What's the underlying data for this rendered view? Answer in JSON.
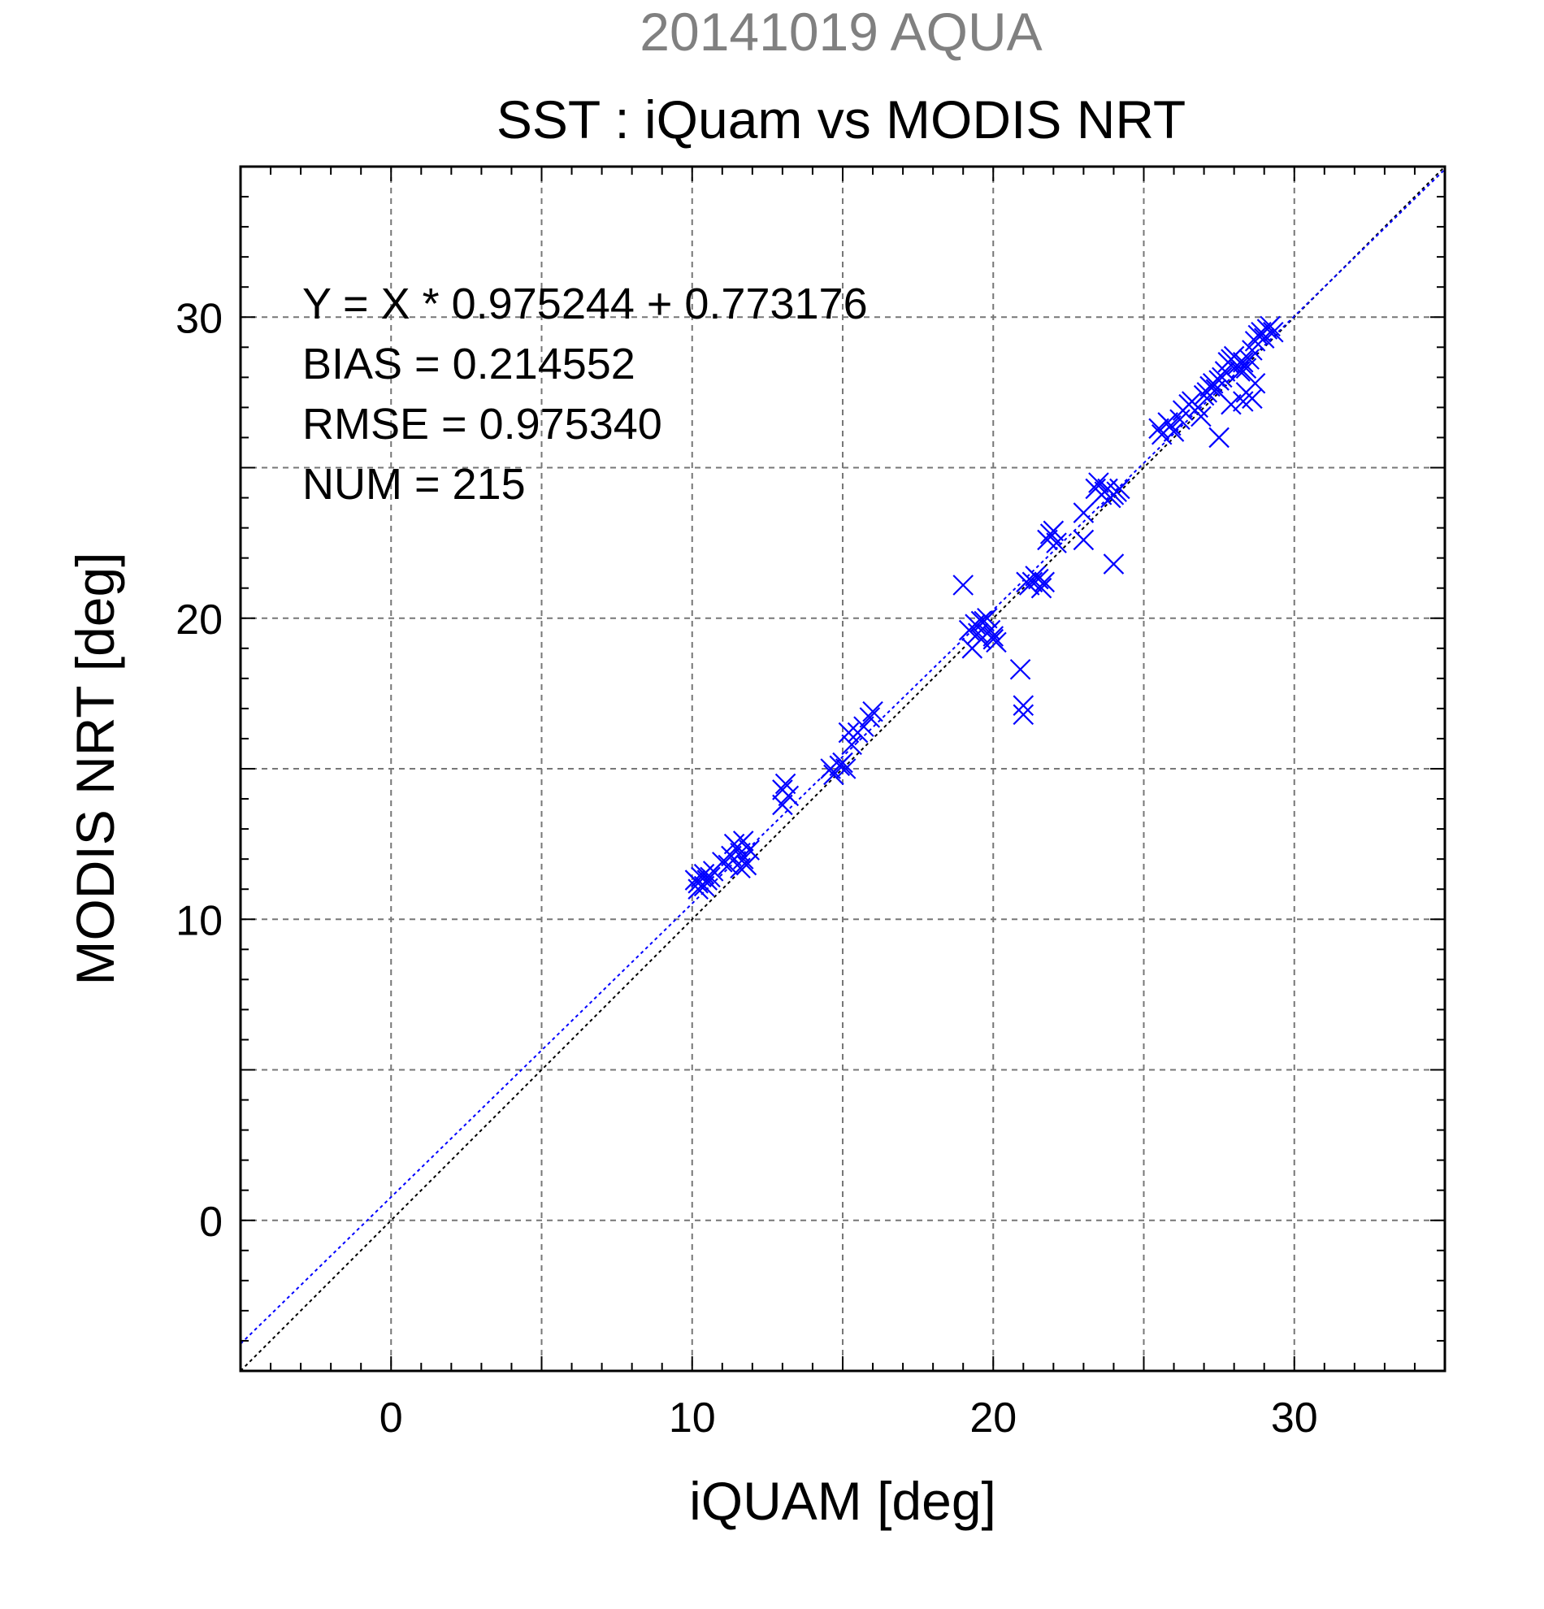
{
  "chart_data": {
    "type": "scatter",
    "supertitle": "20141019 AQUA",
    "title": "SST : iQuam vs MODIS NRT",
    "xlabel": "iQUAM [deg]",
    "ylabel": "MODIS NRT [deg]",
    "xlim": [
      -5,
      35
    ],
    "ylim": [
      -5,
      35
    ],
    "xticks": [
      0,
      10,
      20,
      30
    ],
    "yticks": [
      0,
      10,
      20,
      30
    ],
    "xtick_labels": [
      "0",
      "10",
      "20",
      "30"
    ],
    "ytick_labels": [
      "0",
      "10",
      "20",
      "30"
    ],
    "grid_step": 5,
    "minor_step": 1,
    "grid": true,
    "annotations": [
      "Y = X * 0.975244 + 0.773176",
      "BIAS = 0.214552",
      "RMSE = 0.975340",
      "NUM = 215"
    ],
    "regression": {
      "slope": 0.975244,
      "intercept": 0.773176,
      "color": "#0000ff"
    },
    "identity_line": {
      "color": "#000000"
    },
    "marker": "x",
    "point_color": "#0000ff",
    "series": [
      {
        "x": [
          10.1,
          10.2,
          10.3,
          10.4,
          10.5,
          10.6,
          10.2,
          10.4,
          10.7,
          11.0,
          11.2,
          11.3,
          11.5,
          11.6,
          11.7,
          11.8,
          11.4,
          11.9,
          11.7,
          11.6,
          13.0,
          13.1,
          13.0,
          13.2,
          14.6,
          14.7,
          14.9,
          15.0,
          15.1,
          15.2,
          15.3,
          15.5,
          15.7,
          15.9,
          16.0,
          19.0,
          19.2,
          19.4,
          19.5,
          19.6,
          19.7,
          19.8,
          19.9,
          20.0,
          20.1,
          19.3,
          19.6,
          19.8,
          20.0,
          20.9,
          21.0,
          21.0,
          21.1,
          21.2,
          21.3,
          21.4,
          21.5,
          21.6,
          21.7,
          21.8,
          21.9,
          22.0,
          22.1,
          23.0,
          23.0,
          23.4,
          23.5,
          23.6,
          23.7,
          23.8,
          23.9,
          24.0,
          24.1,
          24.2,
          24.0,
          25.5,
          25.6,
          25.8,
          25.9,
          26.0,
          26.2,
          26.3,
          26.5,
          26.6,
          26.8,
          26.9,
          27.0,
          27.1,
          27.2,
          27.3,
          27.4,
          27.5,
          27.6,
          27.7,
          27.8,
          27.9,
          28.0,
          28.1,
          28.2,
          28.3,
          28.4,
          28.5,
          28.6,
          28.7,
          28.8,
          28.9,
          29.0,
          29.1,
          29.2,
          29.3,
          27.5,
          27.9,
          28.3,
          28.4,
          28.6,
          28.7
        ],
        "y": [
          11.3,
          11.2,
          11.4,
          11.1,
          11.3,
          11.4,
          11.0,
          11.5,
          11.6,
          11.9,
          11.8,
          12.1,
          12.4,
          12.2,
          12.0,
          11.8,
          12.5,
          12.3,
          12.6,
          11.7,
          14.3,
          14.5,
          13.8,
          14.1,
          15.0,
          14.8,
          15.1,
          15.2,
          15.0,
          16.2,
          15.8,
          16.2,
          16.4,
          16.7,
          16.9,
          21.1,
          19.6,
          19.8,
          19.5,
          19.3,
          19.9,
          20.0,
          19.6,
          19.4,
          19.2,
          19.0,
          19.9,
          19.5,
          19.3,
          18.3,
          17.1,
          16.8,
          21.2,
          21.1,
          21.2,
          21.4,
          21.3,
          21.0,
          21.2,
          22.6,
          22.8,
          22.9,
          22.5,
          23.5,
          22.6,
          24.3,
          24.5,
          24.1,
          24.2,
          24.3,
          24.0,
          24.1,
          24.2,
          24.3,
          21.8,
          26.3,
          26.1,
          26.5,
          26.4,
          26.2,
          26.6,
          26.9,
          27.1,
          27.2,
          27.0,
          26.7,
          27.4,
          27.5,
          27.7,
          27.8,
          27.6,
          27.9,
          28.0,
          28.2,
          28.5,
          28.6,
          28.7,
          28.4,
          28.2,
          28.5,
          28.3,
          28.6,
          28.9,
          29.2,
          29.4,
          29.5,
          29.3,
          29.6,
          29.7,
          29.5,
          26.0,
          27.1,
          27.2,
          27.5,
          27.3,
          27.8
        ]
      }
    ]
  }
}
